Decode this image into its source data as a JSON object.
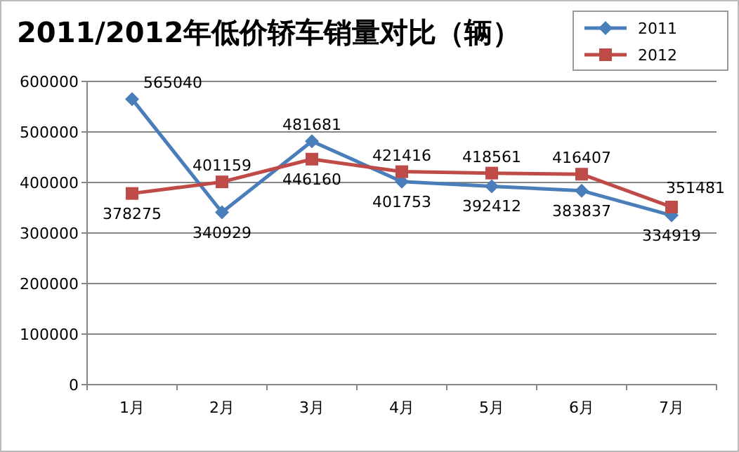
{
  "chart_data": {
    "type": "line",
    "title": "2011/2012年低价轿车销量对比（辆）",
    "categories": [
      "1月",
      "2月",
      "3月",
      "4月",
      "5月",
      "6月",
      "7月"
    ],
    "series": [
      {
        "name": "2011",
        "color": "#4a7ebb",
        "marker": "diamond",
        "values": [
          565040,
          340929,
          481681,
          401753,
          392412,
          383837,
          334919
        ]
      },
      {
        "name": "2012",
        "color": "#be4b48",
        "marker": "square",
        "values": [
          378275,
          401159,
          446160,
          421416,
          418561,
          416407,
          351481
        ]
      }
    ],
    "ylim": [
      0,
      600000
    ],
    "yticks": [
      0,
      100000,
      200000,
      300000,
      400000,
      500000,
      600000
    ],
    "grid": "y",
    "legend": "top right",
    "data_labels": true,
    "line_style": "solid"
  }
}
